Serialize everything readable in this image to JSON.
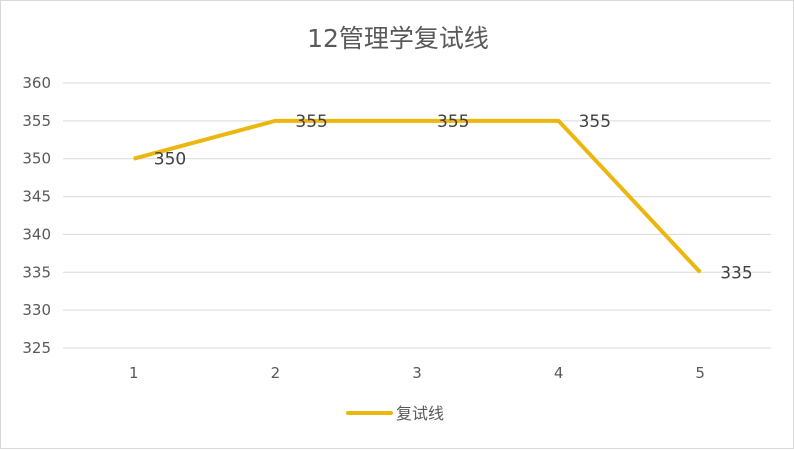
{
  "chart_data": {
    "type": "line",
    "title": "12管理学复试线",
    "xlabel": "",
    "ylabel": "",
    "categories": [
      "1",
      "2",
      "3",
      "4",
      "5"
    ],
    "series": [
      {
        "name": "复试线",
        "values": [
          350,
          355,
          355,
          355,
          335
        ],
        "color": "#EBB70F"
      }
    ],
    "ylim": [
      325,
      360
    ],
    "yticks": [
      325,
      330,
      335,
      340,
      345,
      350,
      355,
      360
    ],
    "grid": true,
    "legend": "bottom",
    "data_labels": true
  }
}
